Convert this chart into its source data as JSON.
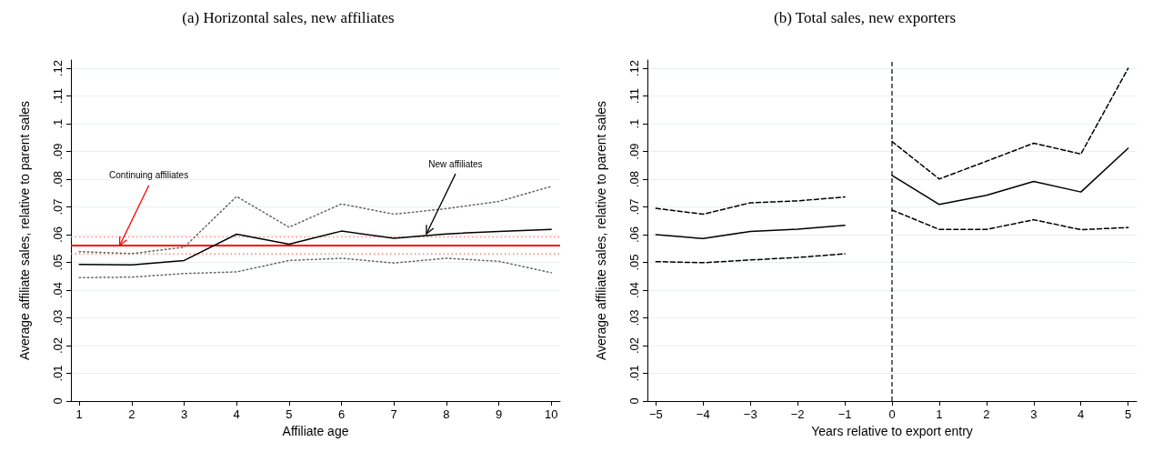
{
  "chart_data": [
    {
      "type": "line",
      "title": "(a) Horizontal sales, new affiliates",
      "xlabel": "Affiliate age",
      "ylabel": "Average affiliate sales, relative to parent sales",
      "grid": "y",
      "marker": "none",
      "x": [
        1,
        2,
        3,
        4,
        5,
        6,
        7,
        8,
        9,
        10
      ],
      "xlim": [
        0.84,
        10.17
      ],
      "xticks": [
        1,
        2,
        3,
        4,
        5,
        6,
        7,
        8,
        9,
        10
      ],
      "ylim": [
        0,
        0.123
      ],
      "yticks": [
        {
          "value": 0,
          "label": "0"
        },
        {
          "value": 0.01,
          "label": ".01"
        },
        {
          "value": 0.02,
          "label": ".02"
        },
        {
          "value": 0.03,
          "label": ".03"
        },
        {
          "value": 0.04,
          "label": ".04"
        },
        {
          "value": 0.05,
          "label": ".05"
        },
        {
          "value": 0.06,
          "label": ".06"
        },
        {
          "value": 0.07,
          "label": ".07"
        },
        {
          "value": 0.08,
          "label": ".08"
        },
        {
          "value": 0.09,
          "label": ".09"
        },
        {
          "value": 0.1,
          "label": ".1"
        },
        {
          "value": 0.11,
          "label": ".11"
        },
        {
          "value": 0.12,
          "label": ".12"
        }
      ],
      "series": [
        {
          "color": "#000000",
          "line_style": "solid",
          "values": [
            0.0493,
            0.0491,
            0.0507,
            0.0602,
            0.0566,
            0.0613,
            0.0587,
            0.0603,
            0.0612,
            0.0619
          ]
        },
        {
          "color": "#666666",
          "line_style": "dotted",
          "values": [
            0.0539,
            0.0532,
            0.0555,
            0.0738,
            0.0627,
            0.0711,
            0.0674,
            0.0694,
            0.072,
            0.0774
          ]
        },
        {
          "color": "#666666",
          "line_style": "dotted",
          "values": [
            0.0445,
            0.0447,
            0.046,
            0.0466,
            0.0507,
            0.0515,
            0.0498,
            0.0515,
            0.0504,
            0.0463
          ]
        }
      ],
      "ref_lines": [
        {
          "axis": "y",
          "value": 0.0561,
          "color": "#ff0000",
          "line_style": "solid"
        },
        {
          "axis": "y",
          "value": 0.0592,
          "color": "#ff6666",
          "line_style": "dotted"
        },
        {
          "axis": "y",
          "value": 0.0531,
          "color": "#ff6666",
          "line_style": "dotted"
        }
      ],
      "annotations": [
        {
          "text": "Continuing affiliates",
          "x": 1.77,
          "y": 0.0561
        },
        {
          "text": "New affiliates",
          "x": 7.62,
          "y": 0.0603
        }
      ]
    },
    {
      "type": "line",
      "title": "(b) Total sales, new exporters",
      "xlabel": "Years relative to export entry",
      "ylabel": "Average affiliate sales, relative to parent sales",
      "grid": "y",
      "marker": "none",
      "xlim": [
        -5.18,
        5.18
      ],
      "xticks": [
        {
          "value": -5,
          "label": "−5"
        },
        {
          "value": -4,
          "label": "−4"
        },
        {
          "value": -3,
          "label": "−3"
        },
        {
          "value": -2,
          "label": "−2"
        },
        {
          "value": -1,
          "label": "−1"
        },
        0,
        1,
        2,
        3,
        4,
        5
      ],
      "ylim": [
        0,
        0.123
      ],
      "yticks": [
        {
          "value": 0,
          "label": "0"
        },
        {
          "value": 0.01,
          "label": ".01"
        },
        {
          "value": 0.02,
          "label": ".02"
        },
        {
          "value": 0.03,
          "label": ".03"
        },
        {
          "value": 0.04,
          "label": ".04"
        },
        {
          "value": 0.05,
          "label": ".05"
        },
        {
          "value": 0.06,
          "label": ".06"
        },
        {
          "value": 0.07,
          "label": ".07"
        },
        {
          "value": 0.08,
          "label": ".08"
        },
        {
          "value": 0.09,
          "label": ".09"
        },
        {
          "value": 0.1,
          "label": ".1"
        },
        {
          "value": 0.11,
          "label": ".11"
        },
        {
          "value": 0.12,
          "label": ".12"
        }
      ],
      "series": [
        {
          "color": "#000000",
          "line_style": "solid",
          "x": [
            -5,
            -4,
            -3,
            -2,
            -1
          ],
          "values": [
            0.06,
            0.0586,
            0.0612,
            0.062,
            0.0634
          ]
        },
        {
          "color": "#000000",
          "line_style": "dashed",
          "x": [
            -5,
            -4,
            -3,
            -2,
            -1
          ],
          "values": [
            0.0695,
            0.0674,
            0.0715,
            0.0722,
            0.0736
          ]
        },
        {
          "color": "#000000",
          "line_style": "dashed",
          "x": [
            -5,
            -4,
            -3,
            -2,
            -1
          ],
          "values": [
            0.0503,
            0.0499,
            0.0509,
            0.0518,
            0.0531
          ]
        },
        {
          "color": "#000000",
          "line_style": "solid",
          "x": [
            0,
            1,
            2,
            3,
            4,
            5
          ],
          "values": [
            0.0814,
            0.0709,
            0.0742,
            0.0792,
            0.0754,
            0.0912
          ]
        },
        {
          "color": "#000000",
          "line_style": "dashed",
          "x": [
            0,
            1,
            2,
            3,
            4,
            5
          ],
          "values": [
            0.0936,
            0.0801,
            0.0865,
            0.093,
            0.0891,
            0.12
          ]
        },
        {
          "color": "#000000",
          "line_style": "dashed",
          "x": [
            0,
            1,
            2,
            3,
            4,
            5
          ],
          "values": [
            0.0689,
            0.0619,
            0.0619,
            0.0654,
            0.0618,
            0.0626
          ]
        }
      ],
      "ref_lines": [
        {
          "axis": "x",
          "value": 0,
          "color": "#000000",
          "line_style": "dashed"
        }
      ]
    }
  ]
}
